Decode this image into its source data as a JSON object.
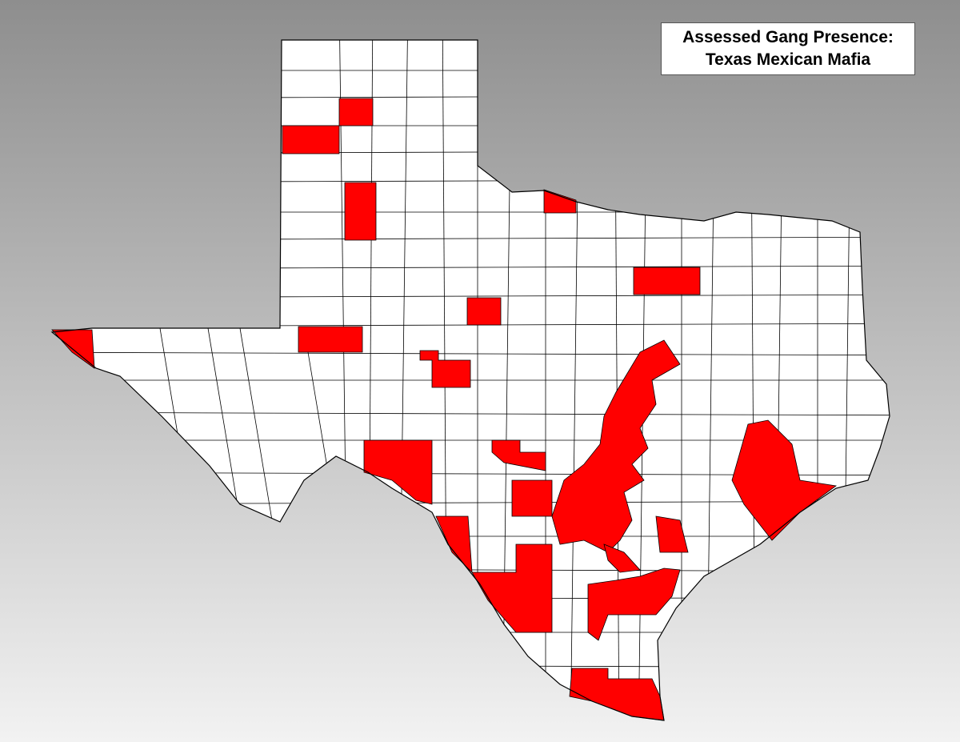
{
  "title": {
    "line1": "Assessed Gang Presence:",
    "line2": "Texas Mexican Mafia"
  },
  "colors": {
    "presence": "#ff0000",
    "no_presence": "#ffffff",
    "border": "#000000"
  }
}
